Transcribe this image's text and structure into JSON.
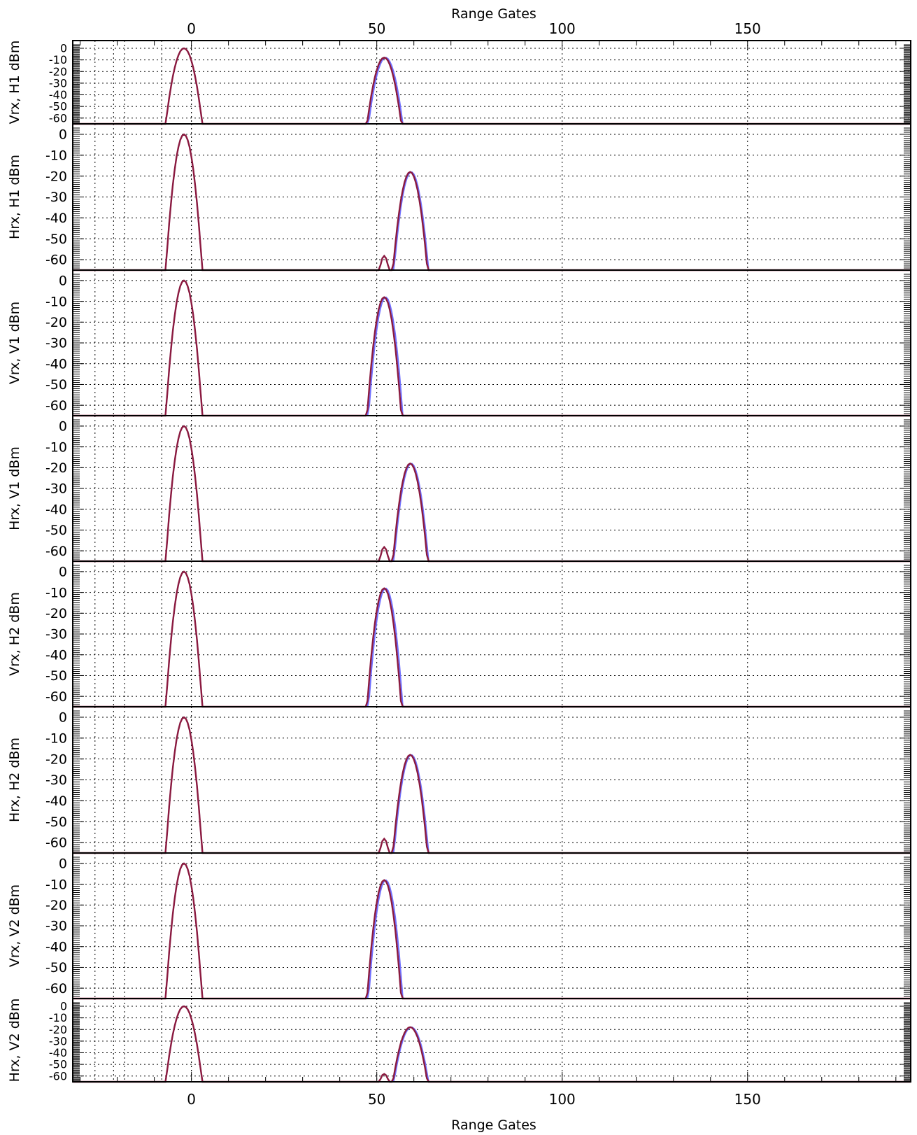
{
  "chart_data": {
    "type": "line",
    "xlabel_top": "Range Gates",
    "xlabel_bottom": "Range Gates",
    "xlim": [
      -32,
      194
    ],
    "ylim": [
      -65,
      3
    ],
    "x_ticks": [
      0,
      50,
      100,
      150
    ],
    "x_tick_labels": [
      "0",
      "50",
      "100",
      "150"
    ],
    "y_ticks": [
      0,
      -10,
      -20,
      -30,
      -40,
      -50,
      -60
    ],
    "y_tick_labels": [
      "0",
      "-10",
      "-20",
      "-30",
      "-40",
      "-50",
      "-60"
    ],
    "vertical_dotted_lines": [
      -26,
      -21,
      -18,
      -8,
      0
    ],
    "grid": true,
    "colors": {
      "series_a": "#6f6fff",
      "series_b": "#8b1a3f"
    },
    "panels": [
      {
        "ylabel": "Vrx, H1 dBm",
        "target_peak_x": 52,
        "target_peak_db": -8,
        "target_type": "copol"
      },
      {
        "ylabel": "Hrx, H1 dBm",
        "target_peak_x": 59,
        "target_peak_db": -18,
        "target_type": "xpol"
      },
      {
        "ylabel": "Vrx, V1 dBm",
        "target_peak_x": 52,
        "target_peak_db": -8,
        "target_type": "copol"
      },
      {
        "ylabel": "Hrx, V1 dBm",
        "target_peak_x": 59,
        "target_peak_db": -18,
        "target_type": "xpol"
      },
      {
        "ylabel": "Vrx, H2 dBm",
        "target_peak_x": 52,
        "target_peak_db": -8,
        "target_type": "copol"
      },
      {
        "ylabel": "Hrx, H2 dBm",
        "target_peak_x": 59,
        "target_peak_db": -18,
        "target_type": "xpol"
      },
      {
        "ylabel": "Vrx, V2 dBm",
        "target_peak_x": 52,
        "target_peak_db": -8,
        "target_type": "copol"
      },
      {
        "ylabel": "Hrx, V2 dBm",
        "target_peak_x": 59,
        "target_peak_db": -18,
        "target_type": "xpol"
      }
    ]
  }
}
